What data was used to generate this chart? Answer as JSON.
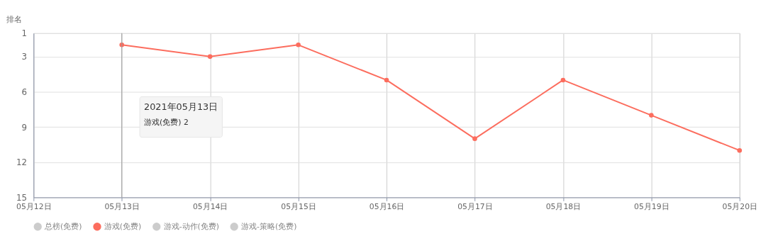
{
  "chart_data": {
    "type": "line",
    "ylabel": "排名",
    "categories": [
      "05月12日",
      "05月13日",
      "05月14日",
      "05月15日",
      "05月16日",
      "05月17日",
      "05月18日",
      "05月19日",
      "05月20日"
    ],
    "series": [
      {
        "name": "总榜(免费)",
        "color": "#cccccc",
        "values": [
          null,
          null,
          null,
          null,
          null,
          null,
          null,
          null,
          null
        ]
      },
      {
        "name": "游戏(免费)",
        "color": "#fc6d5e",
        "values": [
          null,
          2,
          3,
          2,
          5,
          10,
          5,
          8,
          11
        ]
      },
      {
        "name": "游戏-动作(免费)",
        "color": "#cccccc",
        "values": [
          null,
          null,
          null,
          null,
          null,
          null,
          null,
          null,
          null
        ]
      },
      {
        "name": "游戏-策略(免费)",
        "color": "#cccccc",
        "values": [
          null,
          null,
          null,
          null,
          null,
          null,
          null,
          null,
          null
        ]
      }
    ],
    "ylim": [
      15,
      1
    ],
    "yticks": [
      1,
      3,
      6,
      9,
      12,
      15
    ],
    "ref_lines": [
      {
        "axis": "x",
        "value": "05月13日",
        "label": null,
        "color": "#999999"
      }
    ],
    "annotations": [
      "2021年05月13日",
      "游戏(免费)  2"
    ],
    "grid": true,
    "legend": "bottom",
    "marker": "circle",
    "line_style": "solid"
  }
}
